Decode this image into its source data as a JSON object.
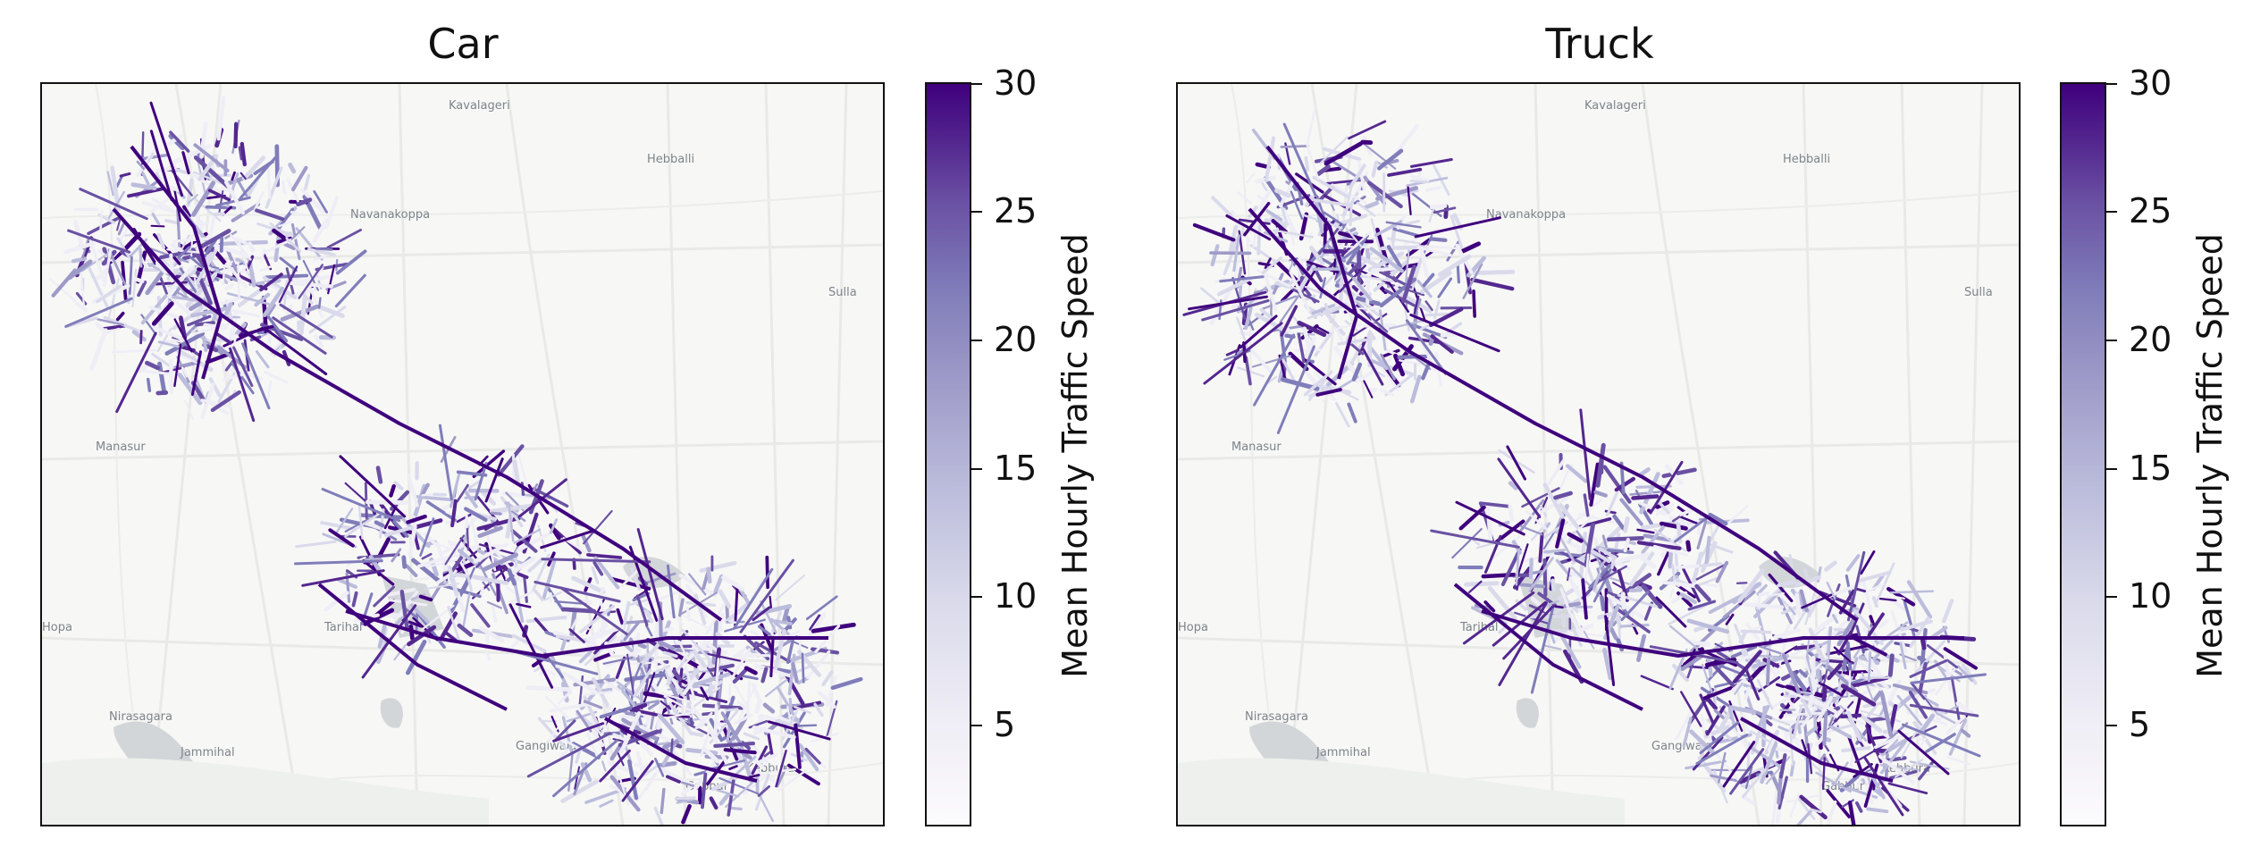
{
  "panels": [
    {
      "title": "Car",
      "colorbar": {
        "label": "Mean Hourly Traffic Speed",
        "ticks": [
          "5",
          "10",
          "15",
          "20",
          "25",
          "30"
        ]
      },
      "place_labels": [
        "Kavalageri",
        "Hebballi",
        "Navanakoppa",
        "Sulla",
        "Manasur",
        "Nirasagara",
        "Jammihal",
        "Gangiwala",
        "Gabbur",
        "Kebbura",
        "Tarihal",
        "Hopa"
      ]
    },
    {
      "title": "Truck",
      "colorbar": {
        "label": "Mean Hourly Traffic Speed",
        "ticks": [
          "5",
          "10",
          "15",
          "20",
          "25",
          "30"
        ]
      },
      "place_labels": [
        "Kavalageri",
        "Hebballi",
        "Navanakoppa",
        "Sulla",
        "Manasur",
        "Nirasagara",
        "Jammihal",
        "Gangiwala",
        "Gabbur",
        "Kebbura",
        "Tarihal",
        "Hopa"
      ]
    }
  ],
  "colormap": {
    "name": "Purples",
    "min": 1,
    "max": 30,
    "low_color": "#fcfbfd",
    "high_color": "#3f007d"
  }
}
